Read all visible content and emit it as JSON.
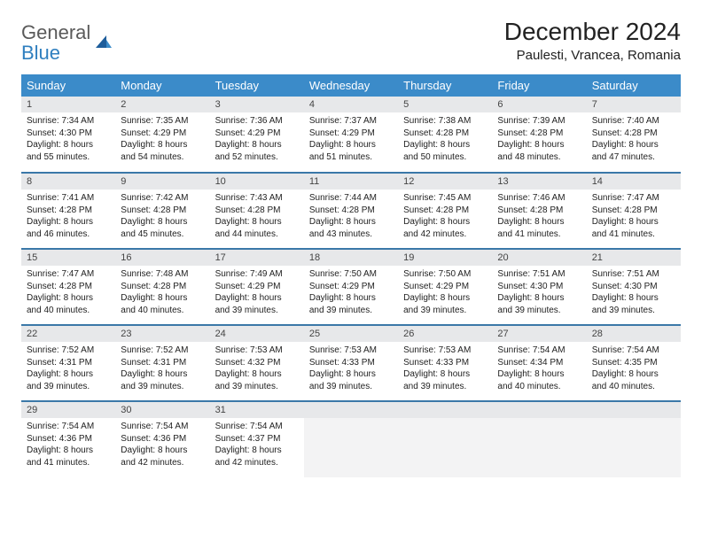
{
  "logo": {
    "text1": "General",
    "text2": "Blue"
  },
  "title": "December 2024",
  "location": "Paulesti, Vrancea, Romania",
  "colors": {
    "header_bg": "#3b8bc9",
    "header_text": "#ffffff",
    "row_divider": "#3b78a8",
    "daynum_bg": "#e7e8ea",
    "empty_bg": "#f3f3f4",
    "logo_gray": "#5a5a5a",
    "logo_blue": "#2f7fbf"
  },
  "day_headers": [
    "Sunday",
    "Monday",
    "Tuesday",
    "Wednesday",
    "Thursday",
    "Friday",
    "Saturday"
  ],
  "weeks": [
    [
      {
        "n": "1",
        "sr": "7:34 AM",
        "ss": "4:30 PM",
        "dl": "8 hours and 55 minutes."
      },
      {
        "n": "2",
        "sr": "7:35 AM",
        "ss": "4:29 PM",
        "dl": "8 hours and 54 minutes."
      },
      {
        "n": "3",
        "sr": "7:36 AM",
        "ss": "4:29 PM",
        "dl": "8 hours and 52 minutes."
      },
      {
        "n": "4",
        "sr": "7:37 AM",
        "ss": "4:29 PM",
        "dl": "8 hours and 51 minutes."
      },
      {
        "n": "5",
        "sr": "7:38 AM",
        "ss": "4:28 PM",
        "dl": "8 hours and 50 minutes."
      },
      {
        "n": "6",
        "sr": "7:39 AM",
        "ss": "4:28 PM",
        "dl": "8 hours and 48 minutes."
      },
      {
        "n": "7",
        "sr": "7:40 AM",
        "ss": "4:28 PM",
        "dl": "8 hours and 47 minutes."
      }
    ],
    [
      {
        "n": "8",
        "sr": "7:41 AM",
        "ss": "4:28 PM",
        "dl": "8 hours and 46 minutes."
      },
      {
        "n": "9",
        "sr": "7:42 AM",
        "ss": "4:28 PM",
        "dl": "8 hours and 45 minutes."
      },
      {
        "n": "10",
        "sr": "7:43 AM",
        "ss": "4:28 PM",
        "dl": "8 hours and 44 minutes."
      },
      {
        "n": "11",
        "sr": "7:44 AM",
        "ss": "4:28 PM",
        "dl": "8 hours and 43 minutes."
      },
      {
        "n": "12",
        "sr": "7:45 AM",
        "ss": "4:28 PM",
        "dl": "8 hours and 42 minutes."
      },
      {
        "n": "13",
        "sr": "7:46 AM",
        "ss": "4:28 PM",
        "dl": "8 hours and 41 minutes."
      },
      {
        "n": "14",
        "sr": "7:47 AM",
        "ss": "4:28 PM",
        "dl": "8 hours and 41 minutes."
      }
    ],
    [
      {
        "n": "15",
        "sr": "7:47 AM",
        "ss": "4:28 PM",
        "dl": "8 hours and 40 minutes."
      },
      {
        "n": "16",
        "sr": "7:48 AM",
        "ss": "4:28 PM",
        "dl": "8 hours and 40 minutes."
      },
      {
        "n": "17",
        "sr": "7:49 AM",
        "ss": "4:29 PM",
        "dl": "8 hours and 39 minutes."
      },
      {
        "n": "18",
        "sr": "7:50 AM",
        "ss": "4:29 PM",
        "dl": "8 hours and 39 minutes."
      },
      {
        "n": "19",
        "sr": "7:50 AM",
        "ss": "4:29 PM",
        "dl": "8 hours and 39 minutes."
      },
      {
        "n": "20",
        "sr": "7:51 AM",
        "ss": "4:30 PM",
        "dl": "8 hours and 39 minutes."
      },
      {
        "n": "21",
        "sr": "7:51 AM",
        "ss": "4:30 PM",
        "dl": "8 hours and 39 minutes."
      }
    ],
    [
      {
        "n": "22",
        "sr": "7:52 AM",
        "ss": "4:31 PM",
        "dl": "8 hours and 39 minutes."
      },
      {
        "n": "23",
        "sr": "7:52 AM",
        "ss": "4:31 PM",
        "dl": "8 hours and 39 minutes."
      },
      {
        "n": "24",
        "sr": "7:53 AM",
        "ss": "4:32 PM",
        "dl": "8 hours and 39 minutes."
      },
      {
        "n": "25",
        "sr": "7:53 AM",
        "ss": "4:33 PM",
        "dl": "8 hours and 39 minutes."
      },
      {
        "n": "26",
        "sr": "7:53 AM",
        "ss": "4:33 PM",
        "dl": "8 hours and 39 minutes."
      },
      {
        "n": "27",
        "sr": "7:54 AM",
        "ss": "4:34 PM",
        "dl": "8 hours and 40 minutes."
      },
      {
        "n": "28",
        "sr": "7:54 AM",
        "ss": "4:35 PM",
        "dl": "8 hours and 40 minutes."
      }
    ],
    [
      {
        "n": "29",
        "sr": "7:54 AM",
        "ss": "4:36 PM",
        "dl": "8 hours and 41 minutes."
      },
      {
        "n": "30",
        "sr": "7:54 AM",
        "ss": "4:36 PM",
        "dl": "8 hours and 42 minutes."
      },
      {
        "n": "31",
        "sr": "7:54 AM",
        "ss": "4:37 PM",
        "dl": "8 hours and 42 minutes."
      },
      null,
      null,
      null,
      null
    ]
  ],
  "labels": {
    "sunrise": "Sunrise:",
    "sunset": "Sunset:",
    "daylight": "Daylight:"
  }
}
